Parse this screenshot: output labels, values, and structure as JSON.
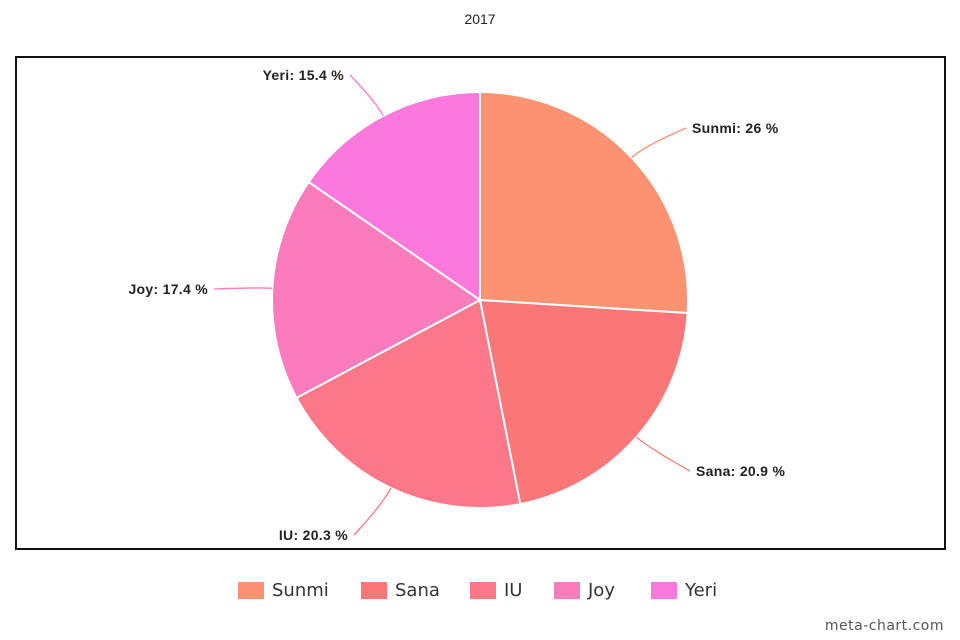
{
  "chart_data": {
    "type": "pie",
    "title": "2017",
    "slices": [
      {
        "name": "Sunmi",
        "value": 26,
        "label": "Sunmi: 26 %",
        "color": "#fb9373"
      },
      {
        "name": "Sana",
        "value": 20.9,
        "label": "Sana: 20.9 %",
        "color": "#fb7676"
      },
      {
        "name": "IU",
        "value": 20.3,
        "label": "IU: 20.3 %",
        "color": "#fb7888"
      },
      {
        "name": "Joy",
        "value": 17.4,
        "label": "Joy: 17.4 %",
        "color": "#fb7cbc"
      },
      {
        "name": "Yeri",
        "value": 15.4,
        "label": "Yeri: 15.4 %",
        "color": "#fb78dc"
      }
    ],
    "legend": [
      "Sunmi",
      "Sana",
      "IU",
      "Joy",
      "Yeri"
    ],
    "legend_position": "bottom"
  },
  "credit": "meta-chart.com"
}
